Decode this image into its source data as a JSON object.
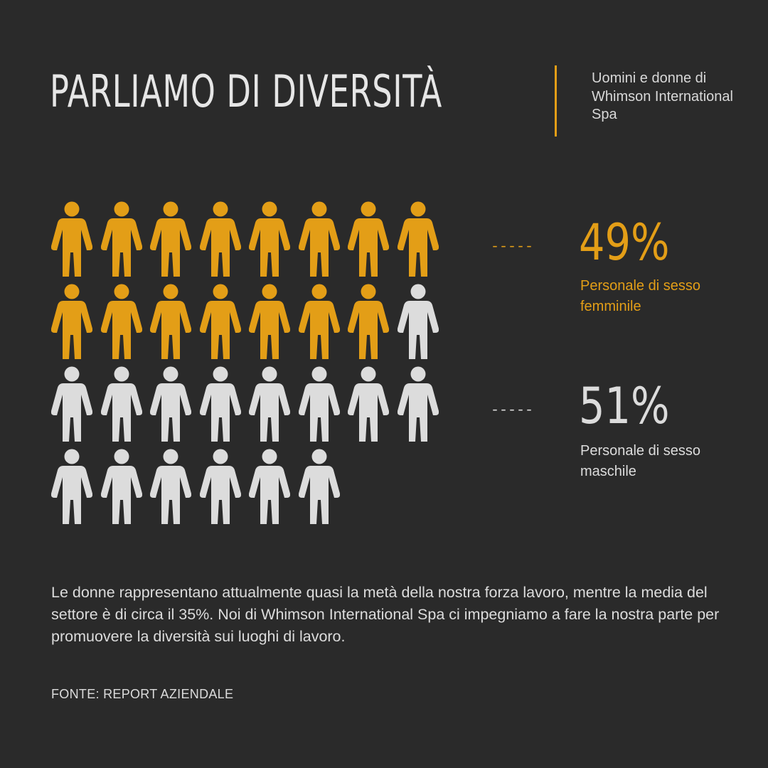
{
  "header": {
    "title": "PARLIAMO DI DIVERSITÀ",
    "subtitle": "Uomini e donne di Whimson International Spa"
  },
  "colors": {
    "background": "#2a2a2a",
    "female": "#e39e17",
    "male": "#dcdcdc",
    "text": "#dcdcdc"
  },
  "chart_data": {
    "type": "pictogram",
    "icon": "person-icon",
    "total_icons": 30,
    "icons_per_row": 8,
    "series": [
      {
        "name": "Personale di sesso femminile",
        "percent": "49%",
        "icon_count": 15,
        "color": "#e39e17"
      },
      {
        "name": "Personale di sesso maschile",
        "percent": "51%",
        "icon_count": 15,
        "color": "#dcdcdc"
      }
    ]
  },
  "stats": [
    {
      "dash": "-----",
      "value": "49%",
      "label": "Personale di sesso femminile"
    },
    {
      "dash": "-----",
      "value": "51%",
      "label": "Personale di sesso maschile"
    }
  ],
  "body": {
    "text": "Le donne rappresentano attualmente quasi la metà della nostra forza lavoro, mentre la media del settore è di circa il 35%. Noi di Whimson International Spa ci impegniamo a fare la nostra parte per promuovere la diversità sui luoghi di lavoro."
  },
  "footer": {
    "source": "FONTE: REPORT AZIENDALE"
  }
}
